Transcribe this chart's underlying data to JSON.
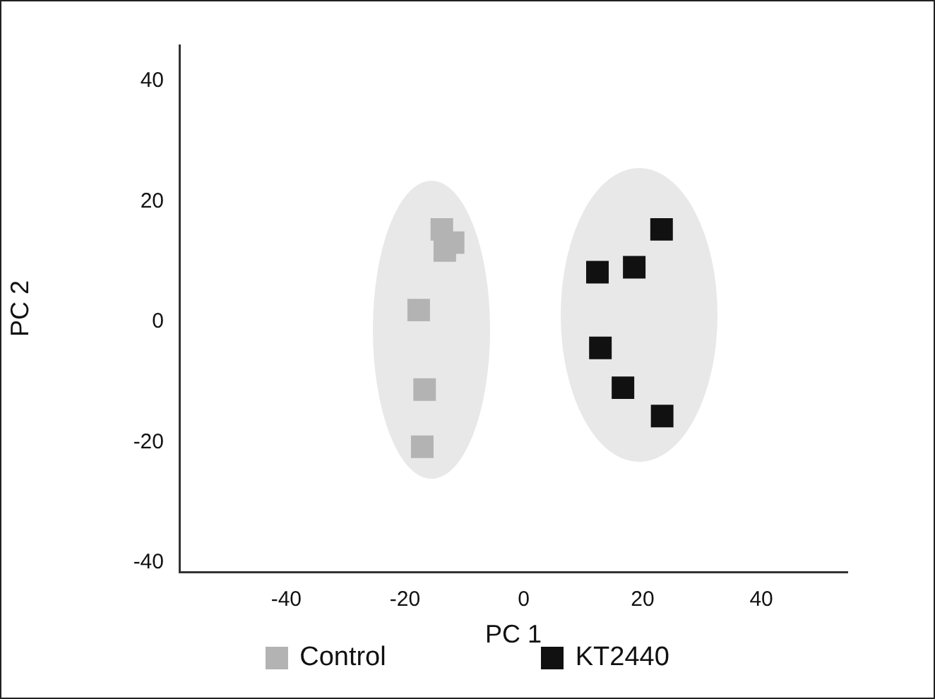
{
  "chart_data": {
    "type": "scatter",
    "xlabel": "PC 1",
    "ylabel": "PC 2",
    "marker": "square",
    "legend": "bottom",
    "grid": false,
    "xlim": [
      -58,
      54.5
    ],
    "xticks": [
      -40,
      -20,
      0,
      20,
      40
    ],
    "ylim": [
      -41.5,
      46
    ],
    "yticks": [
      -40,
      -20,
      0,
      20,
      40
    ],
    "series": [
      {
        "name": "Control",
        "color": "#b3b3b3",
        "x": [
          -13.8,
          -11.9,
          -13.3,
          -17.7,
          -16.7,
          -17.1
        ],
        "values": [
          15.4,
          13.2,
          11.9,
          2.0,
          -11.2,
          -20.7
        ]
      },
      {
        "name": "KT2440",
        "color": "#111111",
        "x": [
          12.4,
          18.6,
          23.2,
          12.9,
          16.7,
          23.3
        ],
        "values": [
          8.3,
          9.1,
          15.4,
          -4.3,
          -10.9,
          -15.6
        ]
      }
    ]
  }
}
